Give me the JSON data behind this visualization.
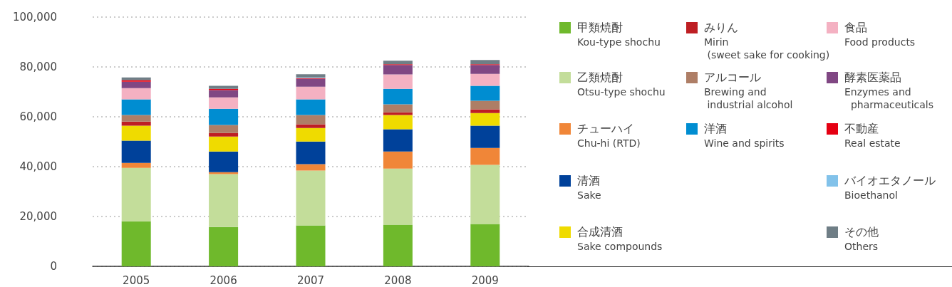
{
  "chart_data": {
    "type": "bar",
    "stacked": true,
    "categories": [
      "2005",
      "2006",
      "2007",
      "2008",
      "2009"
    ],
    "ylim": [
      0,
      100000
    ],
    "yticks": [
      {
        "value": 0,
        "label": "0"
      },
      {
        "value": 20000,
        "label": "20,000"
      },
      {
        "value": 40000,
        "label": "40,000"
      },
      {
        "value": 60000,
        "label": "60,000"
      },
      {
        "value": 80000,
        "label": "80,000"
      },
      {
        "value": 100000,
        "label": "100,000"
      }
    ],
    "grid": "y",
    "legend": "right",
    "series": [
      {
        "name": "甲類焼酎\nKou-type shochu",
        "color": "#6fb92c",
        "values": [
          18100,
          15800,
          16400,
          16700,
          17000
        ]
      },
      {
        "name": "乙類焼酎\nOtsu-type shochu",
        "color": "#c3dd9a",
        "values": [
          21400,
          21200,
          22000,
          22500,
          23700
        ]
      },
      {
        "name": "チューハイ\nChu-hi (RTD)",
        "color": "#f08638",
        "values": [
          2000,
          800,
          2600,
          6900,
          6800
        ]
      },
      {
        "name": "清酒\nSake",
        "color": "#00419a",
        "values": [
          8900,
          8300,
          9100,
          8900,
          8900
        ]
      },
      {
        "name": "合成清酒\nSake compounds",
        "color": "#efdb00",
        "values": [
          6000,
          6000,
          5400,
          5700,
          5100
        ]
      },
      {
        "name": "みりん\nMirin\n (sweet sake for cooking)",
        "color": "#be1e23",
        "values": [
          1700,
          1400,
          1500,
          1100,
          1500
        ]
      },
      {
        "name": "アルコール\nBrewing and\n industrial alcohol",
        "color": "#ae7e66",
        "values": [
          2600,
          3200,
          3700,
          3200,
          3400
        ]
      },
      {
        "name": "洋酒\nWine and spirits",
        "color": "#008dd1",
        "values": [
          6300,
          6500,
          6300,
          6200,
          6000
        ]
      },
      {
        "name": "食品\nFood products",
        "color": "#f4b1c2",
        "values": [
          4500,
          4600,
          5100,
          5800,
          4800
        ]
      },
      {
        "name": "酵素医薬品\nEnzymes and\n  pharmaceuticals",
        "color": "#804783",
        "values": [
          2600,
          2900,
          3100,
          3800,
          3600
        ]
      },
      {
        "name": "不動産\nReal estate",
        "color": "#e50012",
        "values": [
          600,
          500,
          300,
          300,
          300
        ]
      },
      {
        "name": "バイオエタノール\nBioethanol",
        "color": "#82c2ea",
        "values": [
          null,
          null,
          300,
          null,
          null
        ]
      },
      {
        "name": "その他\nOthers",
        "color": "#6f7e86",
        "values": [
          1100,
          1200,
          1300,
          1400,
          1700
        ]
      }
    ]
  }
}
